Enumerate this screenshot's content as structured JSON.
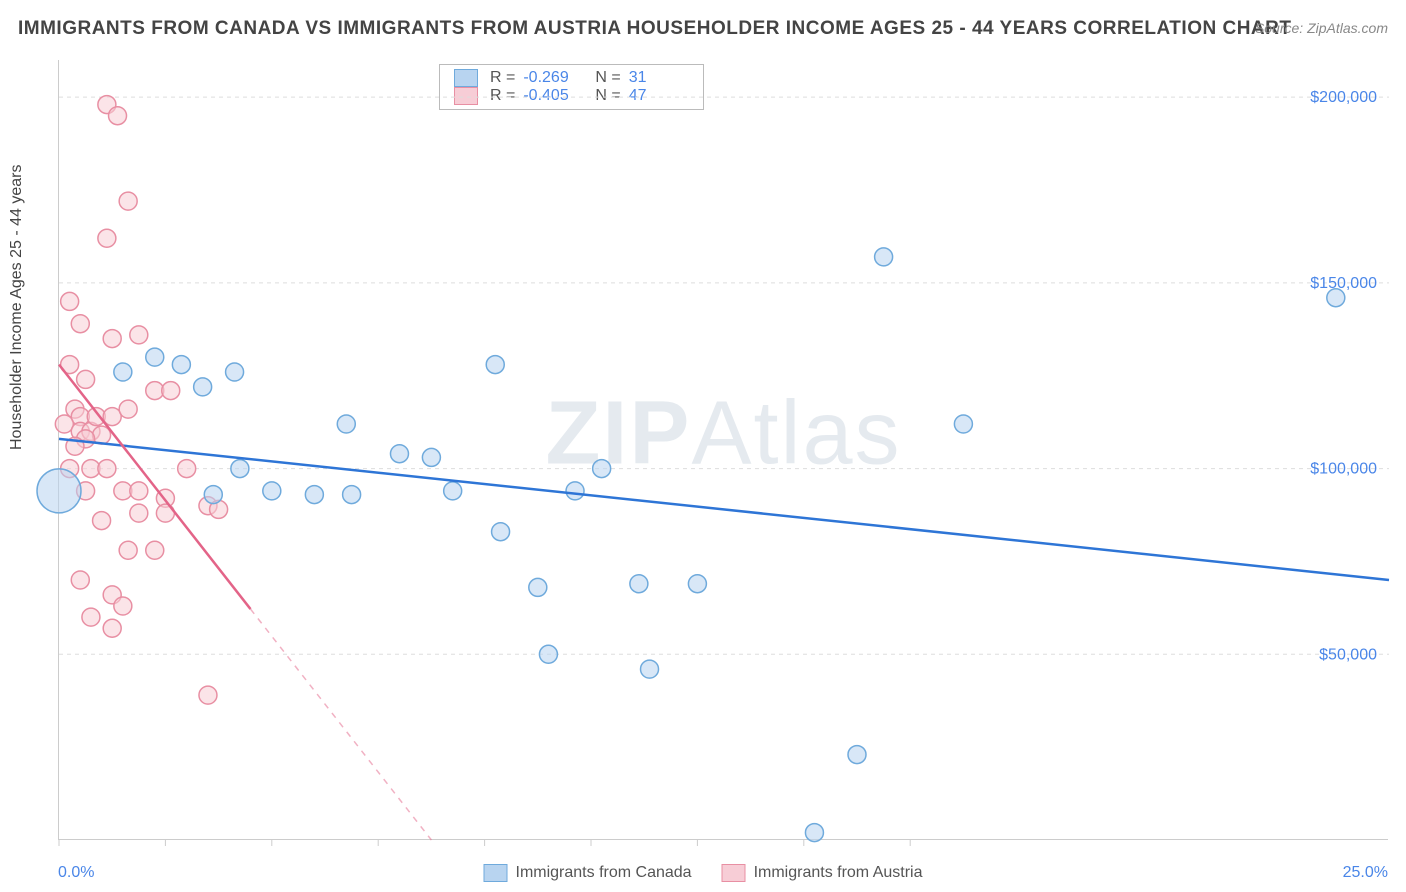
{
  "title": "IMMIGRANTS FROM CANADA VS IMMIGRANTS FROM AUSTRIA HOUSEHOLDER INCOME AGES 25 - 44 YEARS CORRELATION CHART",
  "source": "Source: ZipAtlas.com",
  "ylabel": "Householder Income Ages 25 - 44 years",
  "watermark_a": "ZIP",
  "watermark_b": "Atlas",
  "chart": {
    "type": "scatter",
    "background_color": "#ffffff",
    "grid_color": "#dddddd",
    "xlim": [
      0,
      25
    ],
    "ylim": [
      0,
      210000
    ],
    "x_tick_positions": [
      0,
      2,
      4,
      6,
      8,
      10,
      12,
      14,
      16
    ],
    "x_axis_left_label": "0.0%",
    "x_axis_right_label": "25.0%",
    "y_ticks": [
      {
        "value": 50000,
        "label": "$50,000"
      },
      {
        "value": 100000,
        "label": "$100,000"
      },
      {
        "value": 150000,
        "label": "$150,000"
      },
      {
        "value": 200000,
        "label": "$200,000"
      }
    ],
    "series": [
      {
        "name": "Immigrants from Canada",
        "color_fill": "#b8d4f0",
        "color_stroke": "#6faadc",
        "line_color": "#2e75d6",
        "marker_radius": 9,
        "correlation_r": "-0.269",
        "correlation_n": "31",
        "trend_start": {
          "x": 0,
          "y": 108000
        },
        "trend_end": {
          "x": 25,
          "y": 70000
        },
        "trend_dash_after_x": 25,
        "points": [
          {
            "x": 0.0,
            "y": 94000,
            "r": 22
          },
          {
            "x": 1.2,
            "y": 126000
          },
          {
            "x": 1.8,
            "y": 130000
          },
          {
            "x": 2.3,
            "y": 128000
          },
          {
            "x": 2.7,
            "y": 122000
          },
          {
            "x": 3.3,
            "y": 126000
          },
          {
            "x": 3.4,
            "y": 100000
          },
          {
            "x": 2.9,
            "y": 93000
          },
          {
            "x": 4.0,
            "y": 94000
          },
          {
            "x": 4.8,
            "y": 93000
          },
          {
            "x": 5.4,
            "y": 112000
          },
          {
            "x": 5.5,
            "y": 93000
          },
          {
            "x": 6.4,
            "y": 104000
          },
          {
            "x": 7.0,
            "y": 103000
          },
          {
            "x": 7.4,
            "y": 94000
          },
          {
            "x": 8.2,
            "y": 128000
          },
          {
            "x": 8.3,
            "y": 83000
          },
          {
            "x": 9.0,
            "y": 68000
          },
          {
            "x": 9.7,
            "y": 94000
          },
          {
            "x": 9.2,
            "y": 50000
          },
          {
            "x": 10.2,
            "y": 100000
          },
          {
            "x": 10.9,
            "y": 69000
          },
          {
            "x": 11.1,
            "y": 46000
          },
          {
            "x": 12.0,
            "y": 69000
          },
          {
            "x": 14.2,
            "y": 2000
          },
          {
            "x": 15.0,
            "y": 23000
          },
          {
            "x": 15.5,
            "y": 157000
          },
          {
            "x": 17.0,
            "y": 112000
          },
          {
            "x": 24.0,
            "y": 146000
          }
        ]
      },
      {
        "name": "Immigrants from Austria",
        "color_fill": "#f7cdd6",
        "color_stroke": "#e88fa3",
        "line_color": "#e36488",
        "marker_radius": 9,
        "correlation_r": "-0.405",
        "correlation_n": "47",
        "trend_start": {
          "x": 0,
          "y": 128000
        },
        "trend_end": {
          "x": 7.0,
          "y": 0
        },
        "trend_dash_after_x": 3.6,
        "points": [
          {
            "x": 0.9,
            "y": 198000
          },
          {
            "x": 1.1,
            "y": 195000
          },
          {
            "x": 0.9,
            "y": 162000
          },
          {
            "x": 1.3,
            "y": 172000
          },
          {
            "x": 0.2,
            "y": 145000
          },
          {
            "x": 0.4,
            "y": 139000
          },
          {
            "x": 0.2,
            "y": 128000
          },
          {
            "x": 0.5,
            "y": 124000
          },
          {
            "x": 1.0,
            "y": 135000
          },
          {
            "x": 1.5,
            "y": 136000
          },
          {
            "x": 0.3,
            "y": 116000
          },
          {
            "x": 0.4,
            "y": 114000
          },
          {
            "x": 0.1,
            "y": 112000
          },
          {
            "x": 0.4,
            "y": 110000
          },
          {
            "x": 0.6,
            "y": 110000
          },
          {
            "x": 0.8,
            "y": 109000
          },
          {
            "x": 0.5,
            "y": 108000
          },
          {
            "x": 0.3,
            "y": 106000
          },
          {
            "x": 0.7,
            "y": 114000
          },
          {
            "x": 1.0,
            "y": 114000
          },
          {
            "x": 1.3,
            "y": 116000
          },
          {
            "x": 1.8,
            "y": 121000
          },
          {
            "x": 2.1,
            "y": 121000
          },
          {
            "x": 0.2,
            "y": 100000
          },
          {
            "x": 0.6,
            "y": 100000
          },
          {
            "x": 0.9,
            "y": 100000
          },
          {
            "x": 0.5,
            "y": 94000
          },
          {
            "x": 1.2,
            "y": 94000
          },
          {
            "x": 1.5,
            "y": 94000
          },
          {
            "x": 2.0,
            "y": 92000
          },
          {
            "x": 2.4,
            "y": 100000
          },
          {
            "x": 0.8,
            "y": 86000
          },
          {
            "x": 1.5,
            "y": 88000
          },
          {
            "x": 2.0,
            "y": 88000
          },
          {
            "x": 2.8,
            "y": 90000
          },
          {
            "x": 3.0,
            "y": 89000
          },
          {
            "x": 1.3,
            "y": 78000
          },
          {
            "x": 1.8,
            "y": 78000
          },
          {
            "x": 0.4,
            "y": 70000
          },
          {
            "x": 1.0,
            "y": 66000
          },
          {
            "x": 1.2,
            "y": 63000
          },
          {
            "x": 0.6,
            "y": 60000
          },
          {
            "x": 1.0,
            "y": 57000
          },
          {
            "x": 2.8,
            "y": 39000
          }
        ]
      }
    ],
    "bottom_legend": [
      {
        "label": "Immigrants from Canada",
        "fill": "#b8d4f0",
        "stroke": "#6faadc"
      },
      {
        "label": "Immigrants from Austria",
        "fill": "#f7cdd6",
        "stroke": "#e88fa3"
      }
    ]
  }
}
